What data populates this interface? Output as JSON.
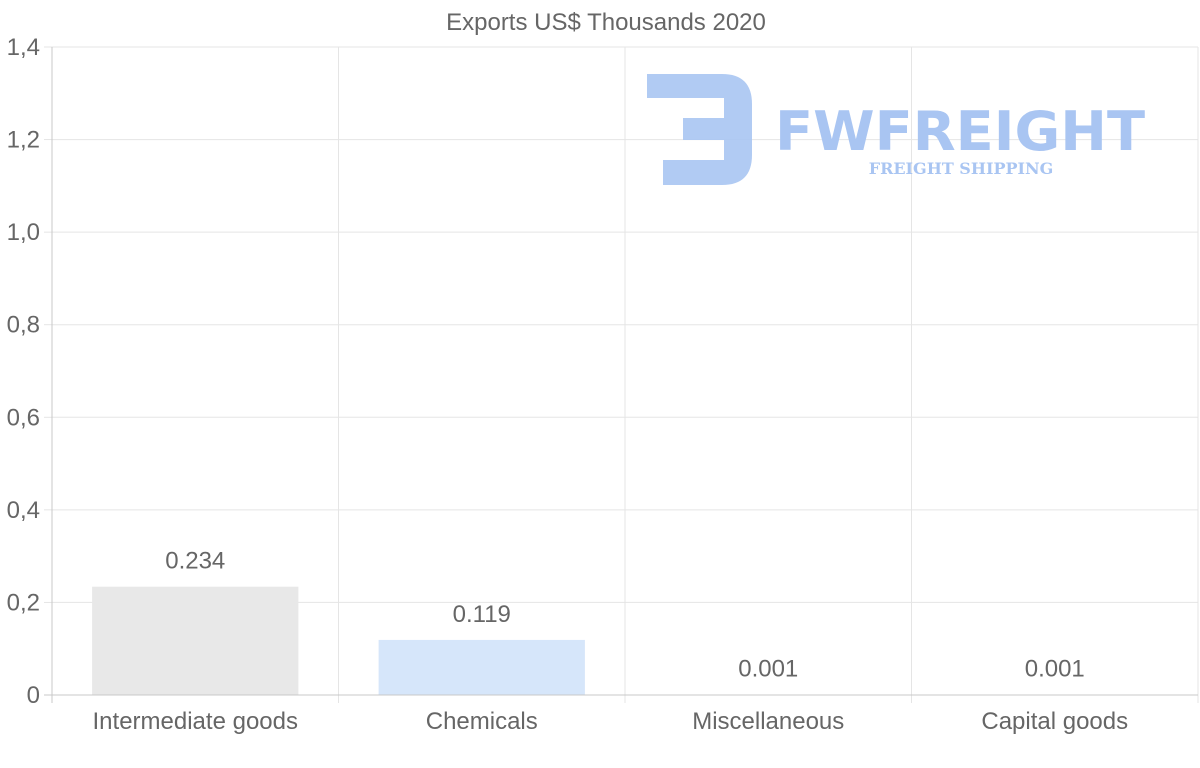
{
  "chart_data": {
    "type": "bar",
    "title": "Exports US$ Thousands 2020",
    "xlabel": "",
    "ylabel": "",
    "categories": [
      "Intermediate goods",
      "Chemicals",
      "Miscellaneous",
      "Capital goods"
    ],
    "values": [
      0.234,
      0.119,
      0.001,
      0.001
    ],
    "value_labels": [
      "0.234",
      "0.119",
      "0.001",
      "0.001"
    ],
    "bar_colors": [
      "#e8e8e8",
      "#d6e6fa",
      "#f2f2f2",
      "#f2f2f2"
    ],
    "ylim": [
      0,
      1.4
    ],
    "y_ticks": [
      0,
      0.2,
      0.4,
      0.6,
      0.8,
      1.0,
      1.2,
      1.4
    ],
    "y_tick_labels": [
      "0",
      "0,2",
      "0,4",
      "0,6",
      "0,8",
      "1,0",
      "1,2",
      "1,4"
    ],
    "grid": true,
    "legend": "none"
  },
  "watermark": {
    "brand": "FWFREIGHT",
    "tagline": "FREIGHT SHIPPING",
    "color": "#a9c5f2"
  },
  "colors": {
    "text": "#666666",
    "grid": "#e5e5e5",
    "axis": "#c8c8c8"
  }
}
